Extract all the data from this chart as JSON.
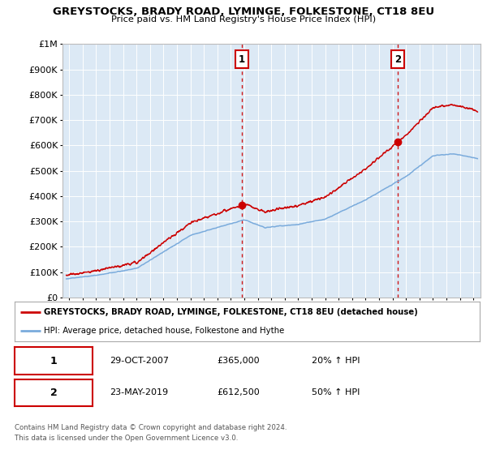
{
  "title": "GREYSTOCKS, BRADY ROAD, LYMINGE, FOLKESTONE, CT18 8EU",
  "subtitle": "Price paid vs. HM Land Registry's House Price Index (HPI)",
  "bg_color": "#dce9f5",
  "red_color": "#cc0000",
  "blue_color": "#7aabdc",
  "ylim": [
    0,
    1000000
  ],
  "yticks": [
    0,
    100000,
    200000,
    300000,
    400000,
    500000,
    600000,
    700000,
    800000,
    900000,
    1000000
  ],
  "ytick_labels": [
    "£0",
    "£100K",
    "£200K",
    "£300K",
    "£400K",
    "£500K",
    "£600K",
    "£700K",
    "£800K",
    "£900K",
    "£1M"
  ],
  "xlim_start": 1994.5,
  "xlim_end": 2025.5,
  "xticks": [
    1995,
    1996,
    1997,
    1998,
    1999,
    2000,
    2001,
    2002,
    2003,
    2004,
    2005,
    2006,
    2007,
    2008,
    2009,
    2010,
    2011,
    2012,
    2013,
    2014,
    2015,
    2016,
    2017,
    2018,
    2019,
    2020,
    2021,
    2022,
    2023,
    2024,
    2025
  ],
  "transaction1_x": 2007.83,
  "transaction1_y": 365000,
  "transaction2_x": 2019.39,
  "transaction2_y": 612500,
  "legend_label_red": "GREYSTOCKS, BRADY ROAD, LYMINGE, FOLKESTONE, CT18 8EU (detached house)",
  "legend_label_blue": "HPI: Average price, detached house, Folkestone and Hythe",
  "table_row1": [
    "1",
    "29-OCT-2007",
    "£365,000",
    "20% ↑ HPI"
  ],
  "table_row2": [
    "2",
    "23-MAY-2019",
    "£612,500",
    "50% ↑ HPI"
  ],
  "footnote1": "Contains HM Land Registry data © Crown copyright and database right 2024.",
  "footnote2": "This data is licensed under the Open Government Licence v3.0."
}
